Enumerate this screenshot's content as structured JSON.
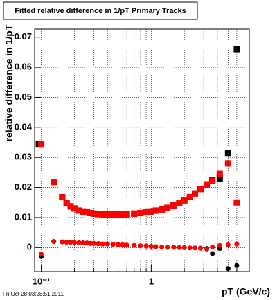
{
  "chart_data": {
    "type": "scatter",
    "title": "Fitted relative difference in 1/pT  Primary Tracks",
    "y_label": "relative difference in 1/pT",
    "x_label": "pT (GeV/c)",
    "timestamp": "Fri Oct 28 03:28:51 2011",
    "xscale": "log",
    "grid": true,
    "xlim": [
      0.087,
      7.8
    ],
    "ylim": [
      -0.008,
      0.0727
    ],
    "xticks": [
      {
        "value": 0.1,
        "label": "10⁻¹"
      },
      1
    ],
    "xminorticks": [
      0.2,
      0.3,
      0.4,
      0.5,
      0.6,
      0.7,
      0.8,
      0.9,
      2,
      3,
      4,
      5,
      6,
      7
    ],
    "yticks": [
      0,
      0.01,
      0.02,
      0.03,
      0.04,
      0.05,
      0.06,
      0.07
    ],
    "series": [
      {
        "color": "#000000",
        "marker": "square",
        "x": [
          0.095,
          0.13,
          0.155,
          0.17,
          0.185,
          0.2,
          0.22,
          0.24,
          0.26,
          0.28,
          0.3,
          0.33,
          0.36,
          0.4,
          0.45,
          0.5,
          0.55,
          0.6,
          0.7,
          0.8,
          0.9,
          1.0,
          1.1,
          1.25,
          1.4,
          1.6,
          1.8,
          2.0,
          2.25,
          2.5,
          2.8,
          3.2,
          3.6,
          4.2,
          5.0,
          6.0
        ],
        "values": [
          0.0345,
          0.0218,
          0.0168,
          0.0147,
          0.0137,
          0.013,
          0.0123,
          0.012,
          0.0117,
          0.0115,
          0.0113,
          0.0112,
          0.0111,
          0.011,
          0.011,
          0.011,
          0.011,
          0.0111,
          0.0113,
          0.0115,
          0.0118,
          0.012,
          0.0123,
          0.0127,
          0.0132,
          0.014,
          0.0148,
          0.0157,
          0.0168,
          0.018,
          0.0195,
          0.021,
          0.0225,
          0.023,
          0.0315,
          0.066
        ]
      },
      {
        "color": "#ff0000",
        "marker": "square",
        "x": [
          0.1,
          0.13,
          0.155,
          0.17,
          0.185,
          0.2,
          0.22,
          0.24,
          0.26,
          0.28,
          0.3,
          0.33,
          0.36,
          0.4,
          0.45,
          0.5,
          0.55,
          0.6,
          0.7,
          0.8,
          0.9,
          1.0,
          1.1,
          1.25,
          1.4,
          1.6,
          1.8,
          2.0,
          2.25,
          2.5,
          2.8,
          3.2,
          3.6,
          4.2,
          5.0,
          6.0
        ],
        "values": [
          0.0345,
          0.0218,
          0.0168,
          0.0147,
          0.0137,
          0.013,
          0.0123,
          0.012,
          0.0117,
          0.0115,
          0.0113,
          0.0112,
          0.0111,
          0.011,
          0.011,
          0.011,
          0.011,
          0.0111,
          0.0113,
          0.0115,
          0.0118,
          0.012,
          0.0123,
          0.0127,
          0.0132,
          0.014,
          0.0148,
          0.0157,
          0.0168,
          0.018,
          0.0195,
          0.021,
          0.0222,
          0.0245,
          0.028,
          0.015
        ]
      },
      {
        "color": "#000000",
        "marker": "circle",
        "x": [
          0.1,
          0.13,
          0.155,
          0.17,
          0.185,
          0.2,
          0.22,
          0.24,
          0.26,
          0.28,
          0.3,
          0.33,
          0.36,
          0.4,
          0.45,
          0.5,
          0.55,
          0.6,
          0.7,
          0.8,
          0.9,
          1.0,
          1.1,
          1.25,
          1.4,
          1.6,
          1.8,
          2.0,
          2.25,
          2.5,
          2.8,
          3.2,
          3.6,
          4.2,
          5.0,
          6.0
        ],
        "values": [
          -0.003,
          0.002,
          0.0019,
          0.0018,
          0.0018,
          0.0017,
          0.0016,
          0.0016,
          0.0015,
          0.0014,
          0.0014,
          0.0013,
          0.0012,
          0.0012,
          0.0011,
          0.001,
          0.0009,
          0.0008,
          0.0007,
          0.0006,
          0.0005,
          0.0004,
          0.0003,
          0.0002,
          0.0001,
          0.0001,
          0,
          0,
          -0.0001,
          -0.0001,
          -0.0002,
          -0.0003,
          -0.002,
          -0.0003,
          -0.007,
          -0.006
        ]
      },
      {
        "color": "#ff0000",
        "marker": "circle",
        "x": [
          0.1,
          0.13,
          0.155,
          0.17,
          0.185,
          0.2,
          0.22,
          0.24,
          0.26,
          0.28,
          0.3,
          0.33,
          0.36,
          0.4,
          0.45,
          0.5,
          0.55,
          0.6,
          0.7,
          0.8,
          0.9,
          1.0,
          1.1,
          1.25,
          1.4,
          1.6,
          1.8,
          2.0,
          2.25,
          2.5,
          2.8,
          3.2,
          3.6,
          4.2,
          5.0,
          6.0
        ],
        "values": [
          -0.0022,
          0.002,
          0.0019,
          0.0018,
          0.0018,
          0.0017,
          0.0016,
          0.0016,
          0.0015,
          0.0014,
          0.0014,
          0.0013,
          0.0012,
          0.0012,
          0.0011,
          0.001,
          0.0009,
          0.0008,
          0.0007,
          0.0006,
          0.0005,
          0.0004,
          0.0003,
          0.0002,
          0.0001,
          0.0001,
          0,
          0,
          -0.0001,
          -0.0001,
          -0.0002,
          -0.0005,
          0.0002,
          0.0007,
          0.0009,
          0.0012
        ]
      }
    ]
  }
}
